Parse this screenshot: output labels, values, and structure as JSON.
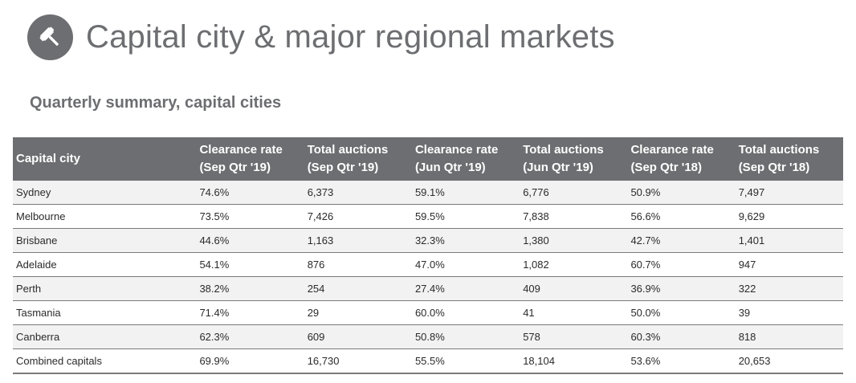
{
  "header": {
    "title": "Capital city & major regional markets",
    "icon": "gavel-icon"
  },
  "subtitle": "Quarterly summary, capital cities",
  "table": {
    "columns": [
      {
        "line1": "Capital city",
        "line2": ""
      },
      {
        "line1": "Clearance rate",
        "line2": "(Sep Qtr '19)"
      },
      {
        "line1": "Total auctions",
        "line2": "(Sep Qtr '19)"
      },
      {
        "line1": "Clearance rate",
        "line2": "(Jun Qtr '19)"
      },
      {
        "line1": "Total auctions",
        "line2": "(Jun Qtr '19)"
      },
      {
        "line1": "Clearance rate",
        "line2": "(Sep Qtr '18)"
      },
      {
        "line1": "Total auctions",
        "line2": "(Sep Qtr '18)"
      }
    ],
    "rows": [
      [
        "Sydney",
        "74.6%",
        "6,373",
        "59.1%",
        "6,776",
        "50.9%",
        "7,497"
      ],
      [
        "Melbourne",
        "73.5%",
        "7,426",
        "59.5%",
        "7,838",
        "56.6%",
        "9,629"
      ],
      [
        "Brisbane",
        "44.6%",
        "1,163",
        "32.3%",
        "1,380",
        "42.7%",
        "1,401"
      ],
      [
        "Adelaide",
        "54.1%",
        "876",
        "47.0%",
        "1,082",
        "60.7%",
        "947"
      ],
      [
        "Perth",
        "38.2%",
        "254",
        "27.4%",
        "409",
        "36.9%",
        "322"
      ],
      [
        "Tasmania",
        "71.4%",
        "29",
        "60.0%",
        "41",
        "50.0%",
        "39"
      ],
      [
        "Canberra",
        "62.3%",
        "609",
        "50.8%",
        "578",
        "60.3%",
        "818"
      ],
      [
        "Combined capitals",
        "69.9%",
        "16,730",
        "55.5%",
        "18,104",
        "53.6%",
        "20,653"
      ]
    ]
  },
  "colors": {
    "header_bg": "#6d6e71",
    "stripe": "#f2f2f2"
  }
}
